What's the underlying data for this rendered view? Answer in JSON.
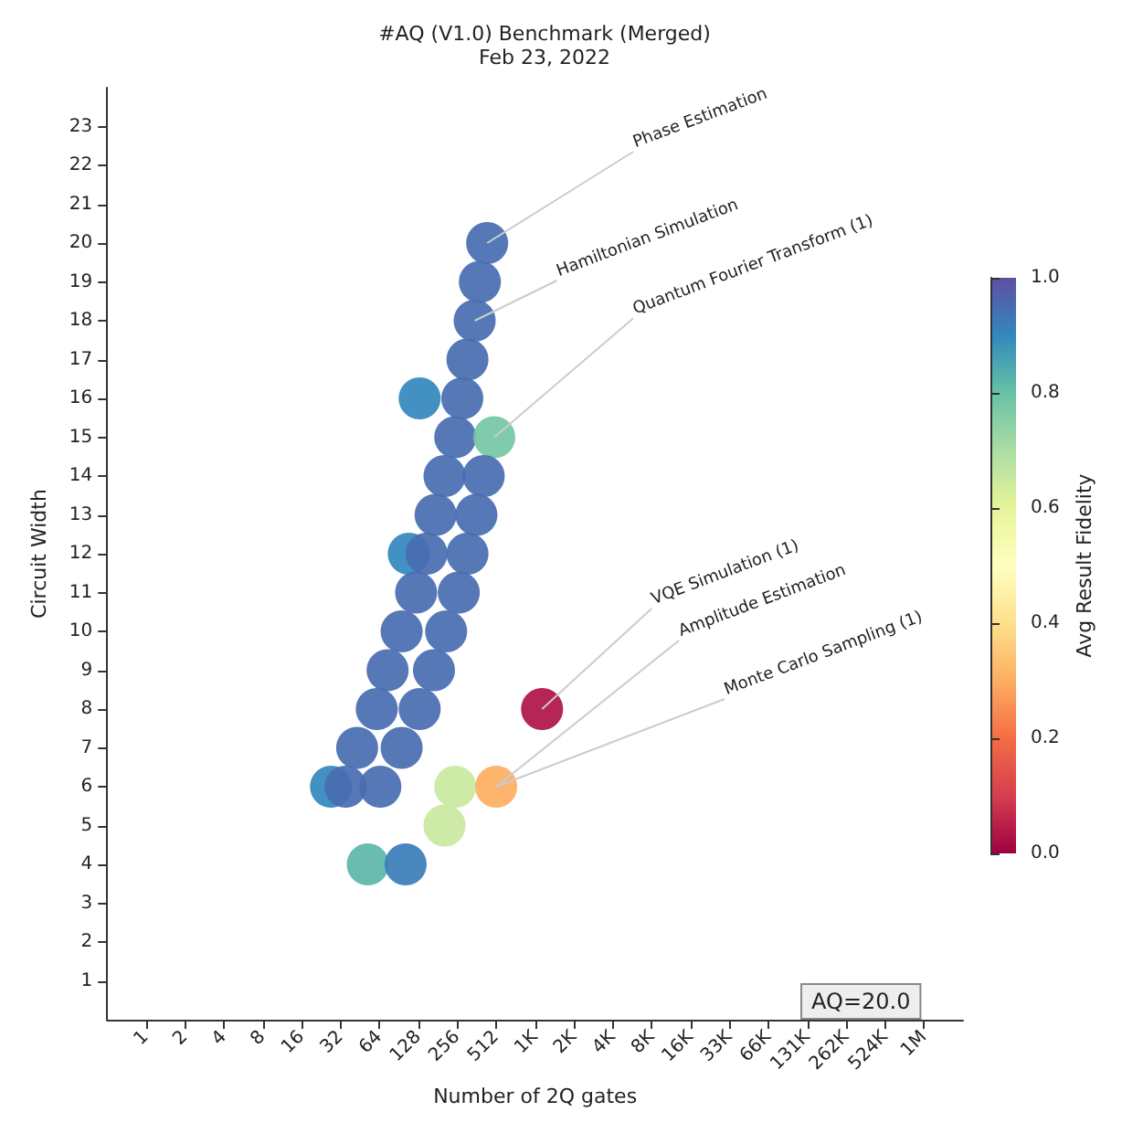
{
  "chart_data": {
    "type": "scatter",
    "title": "#AQ (V1.0) Benchmark (Merged)",
    "subtitle": "Feb 23, 2022",
    "xlabel": "Number of 2Q gates",
    "ylabel": "Circuit Width",
    "clabel": "Avg Result Fidelity",
    "x": [
      436,
      383,
      349,
      307,
      131,
      280,
      247,
      495,
      204,
      410,
      174,
      360,
      108,
      148,
      307,
      123,
      263,
      95,
      210,
      74,
      169,
      61,
      131,
      1160,
      43,
      95,
      27,
      35,
      65,
      247,
      512,
      204,
      52,
      102
    ],
    "values": [
      20,
      19,
      18,
      17,
      16,
      16,
      15,
      15,
      14,
      14,
      13,
      13,
      12,
      12,
      12,
      11,
      11,
      10,
      10,
      9,
      9,
      8,
      8,
      8,
      7,
      7,
      6,
      6,
      6,
      6,
      6,
      5,
      4,
      4
    ],
    "cvalues": [
      0.95,
      0.95,
      0.95,
      0.95,
      0.9,
      0.95,
      0.95,
      0.78,
      0.95,
      0.95,
      0.95,
      0.95,
      0.9,
      0.95,
      0.95,
      0.95,
      0.95,
      0.95,
      0.95,
      0.95,
      0.95,
      0.95,
      0.95,
      0.03,
      0.95,
      0.95,
      0.9,
      0.95,
      0.95,
      0.65,
      0.3,
      0.65,
      0.82,
      0.92
    ],
    "clim": [
      0,
      1
    ],
    "cticks": [
      {
        "value": 0,
        "label": "0.0"
      },
      0.2,
      0.4,
      0.6,
      0.8,
      {
        "value": 1,
        "label": "1.0"
      }
    ],
    "log": "x",
    "marker": "circle",
    "grid": false,
    "xlim": [
      0.5,
      2097152
    ],
    "xticks": [
      1,
      2,
      4,
      8,
      16,
      32,
      64,
      128,
      256,
      512,
      {
        "value": 1024,
        "label": "1K"
      },
      {
        "value": 2048,
        "label": "2K"
      },
      {
        "value": 4096,
        "label": "4K"
      },
      {
        "value": 8192,
        "label": "8K"
      },
      {
        "value": 16384,
        "label": "16K"
      },
      {
        "value": 32768,
        "label": "33K"
      },
      {
        "value": 65536,
        "label": "66K"
      },
      {
        "value": 131072,
        "label": "131K"
      },
      {
        "value": 262144,
        "label": "262K"
      },
      {
        "value": 524288,
        "label": "524K"
      },
      {
        "value": 1048576,
        "label": "1M"
      }
    ],
    "ylim": [
      0,
      24
    ],
    "yticks": [
      1,
      2,
      3,
      4,
      5,
      6,
      7,
      8,
      9,
      10,
      11,
      12,
      13,
      14,
      15,
      16,
      17,
      18,
      19,
      20,
      21,
      22,
      23
    ],
    "annotations": [
      {
        "text": "Phase Estimation",
        "x": 436,
        "y": 20
      },
      {
        "text": "Hamiltonian Simulation",
        "x": 349,
        "y": 18
      },
      {
        "text": "Quantum Fourier Transform (1)",
        "x": 495,
        "y": 15
      },
      {
        "text": "VQE Simulation (1)",
        "x": 1160,
        "y": 8
      },
      {
        "text": "Amplitude Estimation",
        "x": 512,
        "y": 6
      },
      {
        "text": "Monte Carlo Sampling (1)",
        "x": 512,
        "y": 6
      },
      "AQ=20.0"
    ]
  }
}
